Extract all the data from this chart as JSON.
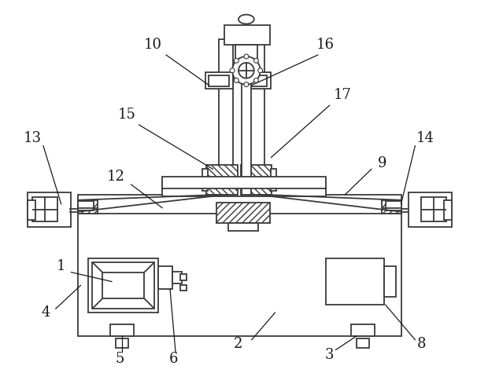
{
  "background_color": "#ffffff",
  "line_color": "#3a3a3a",
  "label_color": "#1a1a1a",
  "label_fontsize": 13,
  "fig_width": 6.06,
  "fig_height": 4.75,
  "dpi": 100
}
